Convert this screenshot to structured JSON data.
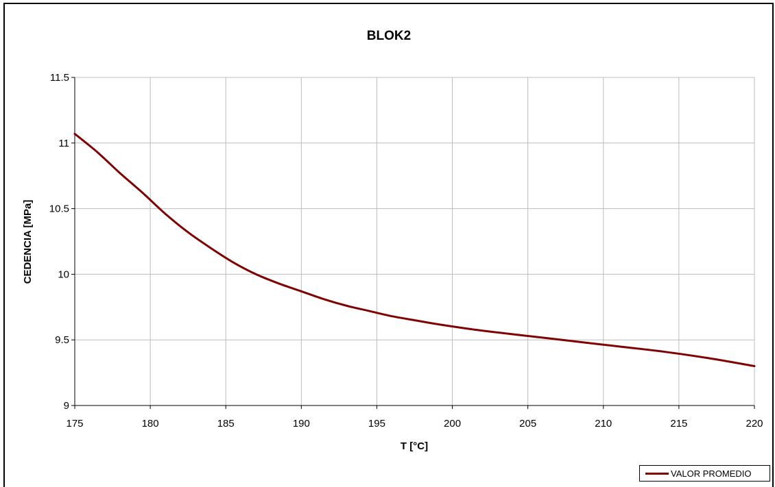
{
  "chart_data": {
    "type": "line",
    "title": "BLOK2",
    "xlabel": "T [°C]",
    "ylabel": "CEDENCIA [MPa]",
    "xlim": [
      175,
      220
    ],
    "ylim": [
      9,
      11.5
    ],
    "xticks": [
      175,
      180,
      185,
      190,
      195,
      200,
      205,
      210,
      215,
      220
    ],
    "yticks": [
      9,
      9.5,
      10,
      10.5,
      11,
      11.5
    ],
    "xtick_labels": [
      "175",
      "180",
      "185",
      "190",
      "195",
      "200",
      "205",
      "210",
      "215",
      "220"
    ],
    "ytick_labels": [
      "9",
      "9.5",
      "10",
      "10.5",
      "11",
      "11.5"
    ],
    "grid": true,
    "legend_position": "bottom-right",
    "series": [
      {
        "name": "VALOR PROMEDIO",
        "color": "#7f0000",
        "x": [
          175,
          176.5,
          178,
          179.5,
          181,
          182.5,
          184,
          185.5,
          187,
          188.5,
          190,
          191.5,
          193,
          194.5,
          196,
          197.5,
          199,
          202,
          205,
          208,
          211,
          214,
          217,
          220
        ],
        "y": [
          11.07,
          10.93,
          10.77,
          10.62,
          10.46,
          10.32,
          10.2,
          10.09,
          10.0,
          9.93,
          9.87,
          9.81,
          9.76,
          9.72,
          9.68,
          9.65,
          9.62,
          9.57,
          9.53,
          9.49,
          9.45,
          9.41,
          9.36,
          9.3
        ]
      }
    ]
  }
}
